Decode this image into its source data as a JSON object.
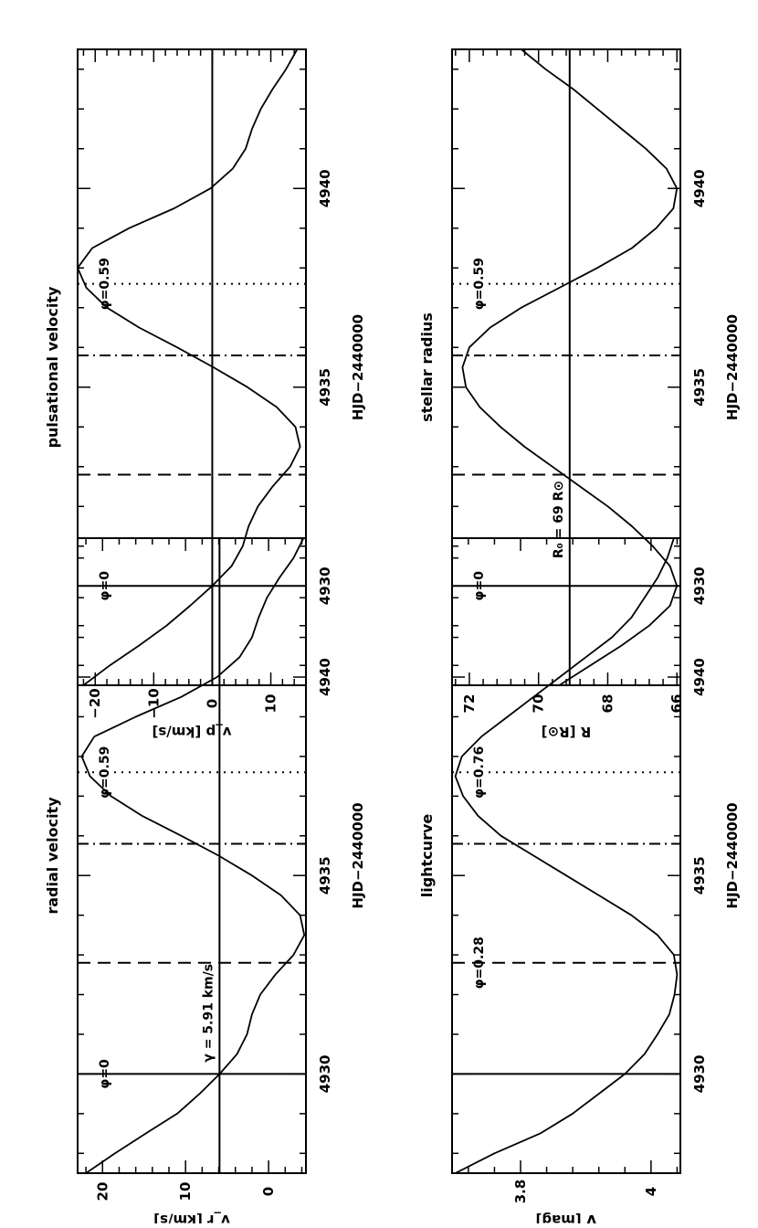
{
  "chart_data": [
    {
      "type": "line",
      "title": "radial velocity",
      "xlabel": "HJD−2440000",
      "ylabel": "v_r [km/s]",
      "xlim": [
        4927.5,
        4943.5
      ],
      "ylim": [
        -4.5,
        23
      ],
      "y_reversed": false,
      "xticks": [
        4930,
        4935,
        4940
      ],
      "yticks": [
        0,
        10,
        20
      ],
      "annotations": [
        {
          "text": "φ=0",
          "x": 4930
        },
        {
          "text": "φ=0.59",
          "x": 4937.6
        },
        {
          "text": "γ = 5.91 km/s",
          "x": 4930.2
        }
      ],
      "hline": 5.91,
      "vlines": [
        {
          "x": 4930.0,
          "style": "solid"
        },
        {
          "x": 4932.8,
          "style": "dashed"
        },
        {
          "x": 4935.8,
          "style": "dashdot"
        },
        {
          "x": 4937.6,
          "style": "dotted"
        }
      ],
      "series": [
        {
          "x": [
            4927.5,
            4928,
            4928.5,
            4929,
            4929.5,
            4930,
            4930.5,
            4931,
            4931.5,
            4932,
            4932.5,
            4933,
            4933.5,
            4934,
            4934.5,
            4935,
            4935.5,
            4936,
            4936.5,
            4937,
            4937.5,
            4938,
            4938.5,
            4939,
            4939.5,
            4940,
            4940.5,
            4941,
            4941.5,
            4942,
            4942.5,
            4943,
            4943.5
          ],
          "values": [
            22.0,
            18.5,
            14.8,
            11.0,
            8.3,
            5.9,
            3.8,
            2.6,
            2.0,
            1.0,
            -0.8,
            -3.0,
            -4.3,
            -3.8,
            -1.5,
            2.0,
            6.0,
            10.5,
            15.2,
            19.0,
            21.5,
            22.5,
            21.0,
            16.0,
            10.5,
            6.2,
            3.5,
            2.0,
            1.2,
            0.2,
            -1.3,
            -3.0,
            -4.2
          ]
        }
      ]
    },
    {
      "type": "line",
      "title": "pulsational velocity",
      "xlabel": "HJD−2440000",
      "ylabel": "v_p [km/s]",
      "xlim": [
        4927.5,
        4943.5
      ],
      "ylim": [
        -23,
        16
      ],
      "y_reversed": true,
      "xticks": [
        4930,
        4935,
        4940
      ],
      "yticks": [
        -20,
        -10,
        0,
        10
      ],
      "annotations": [
        {
          "text": "φ=0",
          "x": 4930
        },
        {
          "text": "φ=0.59",
          "x": 4937.6
        }
      ],
      "hline": 0,
      "vlines": [
        {
          "x": 4930.0,
          "style": "solid"
        },
        {
          "x": 4932.8,
          "style": "dashed"
        },
        {
          "x": 4935.8,
          "style": "dashdot"
        },
        {
          "x": 4937.6,
          "style": "dotted"
        }
      ],
      "series": [
        {
          "x": [
            4927.5,
            4928,
            4928.5,
            4929,
            4929.5,
            4930,
            4930.5,
            4931,
            4931.5,
            4932,
            4932.5,
            4933,
            4933.5,
            4934,
            4934.5,
            4935,
            4935.5,
            4936,
            4936.5,
            4937,
            4937.5,
            4938,
            4938.5,
            4939,
            4939.5,
            4940,
            4940.5,
            4941,
            4941.5,
            4942,
            4942.5,
            4943,
            4943.5
          ],
          "values": [
            -22.0,
            -17.5,
            -12.5,
            -7.8,
            -3.8,
            0.0,
            3.3,
            5.2,
            6.2,
            7.8,
            10.3,
            13.3,
            15.0,
            14.2,
            11.0,
            6.0,
            0.2,
            -6.0,
            -12.5,
            -18.0,
            -21.5,
            -23.0,
            -20.5,
            -14.2,
            -6.5,
            -0.3,
            3.5,
            5.7,
            6.8,
            8.3,
            10.3,
            12.6,
            14.5
          ]
        }
      ]
    },
    {
      "type": "line",
      "title": "lightcurve",
      "xlabel": "HJD−2440000",
      "ylabel": "V [mag]",
      "xlim": [
        4927.5,
        4943.5
      ],
      "ylim": [
        3.695,
        4.045
      ],
      "y_reversed": true,
      "xticks": [
        4930,
        4935,
        4940
      ],
      "yticks": [
        3.8,
        4
      ],
      "annotations": [
        {
          "text": "φ=0.28",
          "x": 4932.8
        },
        {
          "text": "φ=0.76",
          "x": 4937.6
        }
      ],
      "vlines": [
        {
          "x": 4930.0,
          "style": "solid"
        },
        {
          "x": 4932.8,
          "style": "dashed"
        },
        {
          "x": 4935.8,
          "style": "dashdot"
        },
        {
          "x": 4937.6,
          "style": "dotted"
        }
      ],
      "series": [
        {
          "x": [
            4927.5,
            4928,
            4928.5,
            4929,
            4929.5,
            4930,
            4930.5,
            4931,
            4931.5,
            4932,
            4932.5,
            4933,
            4933.5,
            4934,
            4934.5,
            4935,
            4935.5,
            4936,
            4936.5,
            4937,
            4937.5,
            4938,
            4938.5,
            4939,
            4939.5,
            4940,
            4940.5,
            4941,
            4941.5,
            4942,
            4942.5,
            4943,
            4943.5
          ],
          "values": [
            3.7,
            3.76,
            3.83,
            3.88,
            3.92,
            3.96,
            3.99,
            4.01,
            4.028,
            4.036,
            4.04,
            4.035,
            4.01,
            3.97,
            3.92,
            3.87,
            3.82,
            3.77,
            3.735,
            3.712,
            3.7,
            3.71,
            3.74,
            3.78,
            3.82,
            3.86,
            3.9,
            3.94,
            3.97,
            3.99,
            4.01,
            4.025,
            4.035
          ]
        }
      ]
    },
    {
      "type": "line",
      "title": "stellar radius",
      "xlabel": "HJD−2440000",
      "ylabel": "R [R⊙]",
      "xlim": [
        4927.5,
        4943.5
      ],
      "ylim": [
        65.9,
        72.5
      ],
      "y_reversed": false,
      "xticks": [
        4930,
        4935,
        4940
      ],
      "yticks": [
        66,
        68,
        70,
        72
      ],
      "annotations": [
        {
          "text": "φ=0",
          "x": 4930
        },
        {
          "text": "φ=0.59",
          "x": 4937.6
        },
        {
          "text": "R₀ = 69 R⊙",
          "x": 4930.6
        }
      ],
      "hline": 69.1,
      "vlines": [
        {
          "x": 4930.0,
          "style": "solid"
        },
        {
          "x": 4932.8,
          "style": "dashed"
        },
        {
          "x": 4935.8,
          "style": "dashdot"
        },
        {
          "x": 4937.6,
          "style": "dotted"
        }
      ],
      "series": [
        {
          "x": [
            4927.5,
            4928,
            4928.5,
            4929,
            4929.5,
            4930,
            4930.5,
            4931,
            4931.5,
            4932,
            4932.5,
            4933,
            4933.5,
            4934,
            4934.5,
            4935,
            4935.5,
            4936,
            4936.5,
            4937,
            4937.5,
            4938,
            4938.5,
            4939,
            4939.5,
            4940,
            4940.5,
            4941,
            4941.5,
            4942,
            4942.5,
            4943,
            4943.5
          ],
          "values": [
            69.4,
            68.5,
            67.6,
            66.8,
            66.2,
            66.0,
            66.2,
            66.7,
            67.3,
            68.0,
            68.8,
            69.6,
            70.4,
            71.1,
            71.7,
            72.1,
            72.2,
            72.0,
            71.4,
            70.5,
            69.4,
            68.3,
            67.3,
            66.6,
            66.1,
            66.0,
            66.3,
            66.9,
            67.6,
            68.3,
            69.0,
            69.8,
            70.5
          ]
        }
      ]
    }
  ]
}
